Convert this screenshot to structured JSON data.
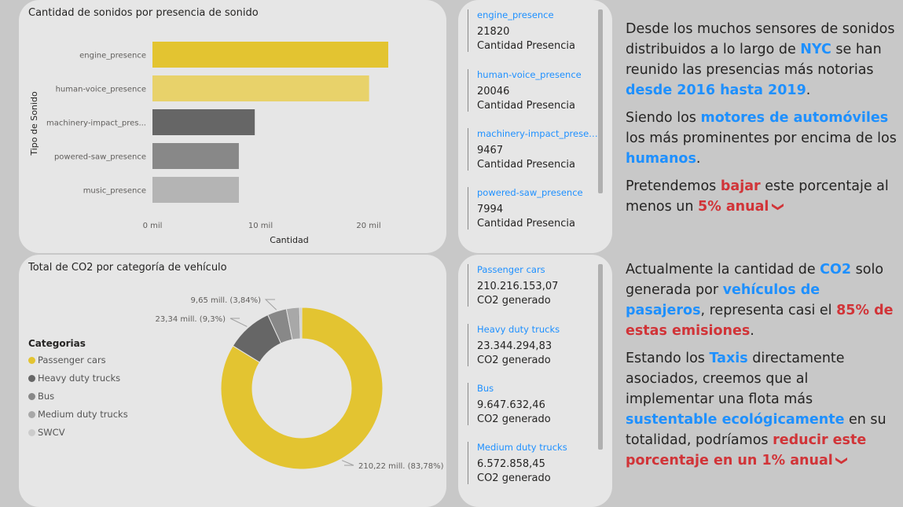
{
  "bar_card": {
    "title": "Cantidad de sonidos por presencia de sonido",
    "y_axis_label": "Tipo de Sonido",
    "x_axis_label": "Cantidad",
    "x_ticks": [
      "0 mil",
      "10 mil",
      "20 mil"
    ]
  },
  "donut_card": {
    "title": "Total de CO2 por categoría de vehículo",
    "legend_title": "Categorias"
  },
  "chart_data": [
    {
      "type": "bar",
      "orientation": "horizontal",
      "title": "Cantidad de sonidos por presencia de sonido",
      "xlabel": "Cantidad",
      "ylabel": "Tipo de Sonido",
      "categories": [
        "engine_presence",
        "human-voice_presence",
        "machinery-impact_pres...",
        "powered-saw_presence",
        "music_presence"
      ],
      "values": [
        21820,
        20046,
        9467,
        7994,
        8000
      ],
      "colors": [
        "#e3c431",
        "#e8d26a",
        "#666666",
        "#888888",
        "#b4b4b4"
      ],
      "xlim": [
        0,
        24000
      ],
      "x_ticks": [
        0,
        10000,
        20000
      ],
      "x_tick_labels": [
        "0 mil",
        "10 mil",
        "20 mil"
      ]
    },
    {
      "type": "pie",
      "donut": true,
      "title": "Total de CO2 por categoría de vehículo",
      "legend_title": "Categorias",
      "legend_position": "left",
      "categories": [
        "Passenger cars",
        "Heavy duty trucks",
        "Bus",
        "Medium duty trucks",
        "SWCV"
      ],
      "values": [
        210216153.07,
        23344294.83,
        9647632.46,
        6572858.45,
        1100000
      ],
      "colors": [
        "#e3c431",
        "#666666",
        "#888888",
        "#a8a8a8",
        "#cccccc"
      ],
      "data_labels": [
        "210,22 mill. (83,78%)",
        "23,34 mill. (9,3%)",
        "9,65 mill. (3,84%)",
        "",
        ""
      ]
    }
  ],
  "sound_kpis": [
    {
      "label": "engine_presence",
      "value": "21820",
      "sub": "Cantidad Presencia"
    },
    {
      "label": "human-voice_presence",
      "value": "20046",
      "sub": "Cantidad Presencia"
    },
    {
      "label": "machinery-impact_presence",
      "value": "9467",
      "sub": "Cantidad Presencia"
    },
    {
      "label": "powered-saw_presence",
      "value": "7994",
      "sub": "Cantidad Presencia"
    }
  ],
  "co2_kpis": [
    {
      "label": "Passenger cars",
      "value": "210.216.153,07",
      "sub": "CO2 generado"
    },
    {
      "label": "Heavy duty trucks",
      "value": "23.344.294,83",
      "sub": "CO2 generado"
    },
    {
      "label": "Bus",
      "value": "9.647.632,46",
      "sub": "CO2 generado"
    },
    {
      "label": "Medium duty trucks",
      "value": "6.572.858,45",
      "sub": "CO2 generado"
    }
  ],
  "narrative": {
    "p1": [
      "Desde los muchos sensores de sonidos distribuidos a lo largo de ",
      "NYC",
      " se han reunido las presencias más notorias ",
      "desde 2016 hasta 2019",
      "."
    ],
    "p2": [
      "Siendo los ",
      "motores de automóviles",
      " los más prominentes por encima de los ",
      "humanos",
      "."
    ],
    "p3": [
      "Pretendemos ",
      "bajar",
      " este porcentaje al menos un ",
      "5% anual",
      "❯"
    ],
    "p4": [
      "Actualmente la cantidad de ",
      "CO2",
      " solo generada por ",
      "vehículos de pasajeros",
      ", representa casi el ",
      "85% de estas emisiones",
      "."
    ],
    "p5": [
      "Estando los ",
      "Taxis",
      " directamente asociados, creemos que al implementar una flota más ",
      "sustentable ecológicamente",
      " en su totalidad, podríamos ",
      "reducir este porcentaje en un 1% anual",
      "❯"
    ]
  },
  "colors": {
    "accent_blue": "#1e90ff",
    "accent_red": "#d13438",
    "yellow": "#e3c431",
    "background": "#c8c8c8",
    "card": "#e6e6e6"
  }
}
